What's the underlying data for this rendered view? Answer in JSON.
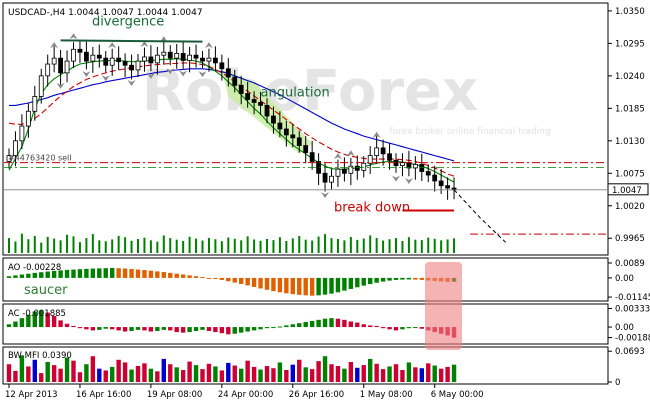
{
  "header": {
    "title": "USDCAD-,H4  1.0044 1.0047 1.0044 1.0047"
  },
  "watermark": "RoboForex",
  "watermark_sub": "forex broker   online financial trading",
  "colors": {
    "up_candle": "#008000",
    "down_candle": "#000000",
    "ma_fast": "#008000",
    "ma_mid": "#cc0000",
    "ma_slow": "#0000cc",
    "ao_up": "#008000",
    "ao_down": "#e06000",
    "ac_up": "#008000",
    "ac_down": "#cc0033",
    "highlight": "#f08080",
    "angulation_zone": "#c8eca0"
  },
  "chart_data": {
    "type": "candlestick",
    "symbol": "USDCAD",
    "timeframe": "H4",
    "main": {
      "ylim": [
        0.994,
        1.036
      ],
      "ticks": [
        "1.0350",
        "1.0295",
        "1.0240",
        "1.0185",
        "1.0130",
        "1.0075",
        "1.0020",
        "0.9965"
      ],
      "tick_values": [
        1.035,
        1.0295,
        1.024,
        1.0185,
        1.013,
        1.0075,
        1.002,
        0.9965
      ],
      "current_price": "1.0047",
      "current_value": 1.0047,
      "order_label": "#44763420 sell",
      "order_value": 1.0093,
      "closes": [
        1.0105,
        1.013,
        1.0155,
        1.018,
        1.0205,
        1.024,
        1.026,
        1.027,
        1.0245,
        1.0265,
        1.0285,
        1.028,
        1.0265,
        1.0275,
        1.027,
        1.0258,
        1.027,
        1.0264,
        1.0258,
        1.025,
        1.0265,
        1.0272,
        1.0262,
        1.0275,
        1.028,
        1.027,
        1.0278,
        1.0266,
        1.0275,
        1.027,
        1.0265,
        1.027,
        1.0262,
        1.0252,
        1.0238,
        1.0224,
        1.021,
        1.02,
        1.0195,
        1.019,
        1.0172,
        1.016,
        1.015,
        1.014,
        1.0135,
        1.0122,
        1.011,
        1.0095,
        1.0075,
        1.006,
        1.007,
        1.0082,
        1.0075,
        1.0087,
        1.008,
        1.0092,
        1.0105,
        1.0118,
        1.0108,
        1.0097,
        1.0088,
        1.0093,
        1.0084,
        1.009,
        1.0078,
        1.0072,
        1.0062,
        1.0054,
        1.005,
        1.0047
      ],
      "ma_fast": [
        1.008,
        1.01,
        1.012,
        1.015,
        1.0185,
        1.021,
        1.0225,
        1.0235,
        1.0242,
        1.0248,
        1.0255,
        1.026,
        1.0262,
        1.0264,
        1.0265,
        1.0266,
        1.0266,
        1.0266,
        1.0265,
        1.0264,
        1.0264,
        1.0265,
        1.0266,
        1.0267,
        1.0268,
        1.0268,
        1.0269,
        1.0268,
        1.0267,
        1.0265,
        1.0262,
        1.0255,
        1.0248,
        1.024,
        1.023,
        1.022,
        1.0208,
        1.0196,
        1.0185,
        1.0175,
        1.0163,
        1.0152,
        1.0142,
        1.0132,
        1.0123,
        1.0115,
        1.0108,
        1.01,
        1.0093,
        1.0087,
        1.0083,
        1.0082,
        1.0082,
        1.0083,
        1.0084,
        1.0086,
        1.0089,
        1.0092,
        1.0094,
        1.0095,
        1.0095,
        1.0094,
        1.0092,
        1.009,
        1.0087,
        1.0083,
        1.0078,
        1.0072,
        1.0066,
        1.006
      ],
      "ma_mid": [
        1.016,
        1.0158,
        1.0158,
        1.0162,
        1.0168,
        1.0176,
        1.0186,
        1.0196,
        1.0206,
        1.0214,
        1.0222,
        1.0228,
        1.0234,
        1.0238,
        1.0242,
        1.0245,
        1.0248,
        1.025,
        1.0252,
        1.0254,
        1.0255,
        1.0257,
        1.0258,
        1.0259,
        1.026,
        1.0261,
        1.0261,
        1.0262,
        1.0262,
        1.0261,
        1.0259,
        1.0256,
        1.0251,
        1.0245,
        1.0238,
        1.023,
        1.0222,
        1.0214,
        1.0206,
        1.0198,
        1.019,
        1.0182,
        1.0174,
        1.0166,
        1.0158,
        1.015,
        1.0142,
        1.0135,
        1.0128,
        1.0122,
        1.0116,
        1.0111,
        1.0107,
        1.0104,
        1.0102,
        1.01,
        1.0099,
        1.0099,
        1.0099,
        1.0099,
        1.0099,
        1.0098,
        1.0097,
        1.0095,
        1.0092,
        1.0088,
        1.0084,
        1.0079,
        1.0074,
        1.007
      ],
      "ma_slow": [
        1.019,
        1.019,
        1.0192,
        1.0194,
        1.0197,
        1.02,
        1.0203,
        1.0207,
        1.021,
        1.0213,
        1.0216,
        1.0219,
        1.0222,
        1.0225,
        1.0227,
        1.023,
        1.0232,
        1.0234,
        1.0236,
        1.0238,
        1.024,
        1.0242,
        1.0244,
        1.0246,
        1.0247,
        1.0249,
        1.025,
        1.0251,
        1.0252,
        1.0252,
        1.0252,
        1.0251,
        1.0249,
        1.0247,
        1.0244,
        1.024,
        1.0236,
        1.0232,
        1.0228,
        1.0223,
        1.0218,
        1.0213,
        1.0208,
        1.0202,
        1.0196,
        1.019,
        1.0184,
        1.0178,
        1.0172,
        1.0166,
        1.016,
        1.0155,
        1.015,
        1.0146,
        1.0142,
        1.0138,
        1.0135,
        1.0132,
        1.0129,
        1.0126,
        1.0123,
        1.012,
        1.0117,
        1.0114,
        1.0111,
        1.0108,
        1.0105,
        1.0102,
        1.0099,
        1.0096
      ],
      "forecast": [
        [
          69,
          1.0047
        ],
        [
          73,
          1.0
        ],
        [
          77,
          0.9958
        ]
      ],
      "annotations": [
        {
          "text": "divergence",
          "index": 11,
          "price": 1.0325,
          "color": "#1a6b3a"
        },
        {
          "text": "angulation",
          "index": 39,
          "price": 1.0205,
          "color": "#1a6b3a"
        },
        {
          "text": "break down",
          "index": 49,
          "price": 1.0017,
          "color": "#cc0000"
        }
      ]
    },
    "ao": {
      "label": "AO -0.00228",
      "ylim": [
        -0.012,
        0.0095
      ],
      "ticks": [
        "0.0089",
        "0.00",
        "-0.01145"
      ],
      "tick_values": [
        0.0089,
        0.0,
        -0.01145
      ],
      "caption": "saucer",
      "values": [
        0.001,
        0.0015,
        0.002,
        0.0025,
        0.003,
        0.0034,
        0.0038,
        0.0042,
        0.0045,
        0.0048,
        0.005,
        0.0052,
        0.0054,
        0.0056,
        0.0057,
        0.0058,
        0.0059,
        0.0058,
        0.0056,
        0.0053,
        0.005,
        0.0047,
        0.0043,
        0.0039,
        0.0035,
        0.003,
        0.0025,
        0.002,
        0.0015,
        0.001,
        0.0005,
        0.0,
        -0.0005,
        -0.0012,
        -0.002,
        -0.0028,
        -0.0036,
        -0.0045,
        -0.0054,
        -0.0063,
        -0.0071,
        -0.0079,
        -0.0086,
        -0.0092,
        -0.0097,
        -0.0101,
        -0.0104,
        -0.0106,
        -0.0104,
        -0.01,
        -0.0094,
        -0.0086,
        -0.0076,
        -0.0066,
        -0.0056,
        -0.0046,
        -0.0037,
        -0.0029,
        -0.0022,
        -0.0016,
        -0.0012,
        -0.001,
        -0.0009,
        -0.001,
        -0.0012,
        -0.0015,
        -0.0018,
        -0.0021,
        -0.0024,
        -0.0023
      ]
    },
    "ac": {
      "label": "AC -0.001885",
      "ylim": [
        -0.0025,
        0.0036
      ],
      "ticks": [
        "0.003334",
        "0.00",
        "-0.001885"
      ],
      "tick_values": [
        0.003334,
        0.0,
        -0.001885
      ],
      "values": [
        0.0005,
        0.001,
        0.0016,
        0.0022,
        0.0028,
        0.003,
        0.0026,
        0.002,
        0.0012,
        0.0006,
        0.0002,
        -0.0002,
        -0.0004,
        -0.0006,
        -0.0005,
        -0.0003,
        -0.0004,
        -0.0006,
        -0.0008,
        -0.0007,
        -0.0005,
        -0.0006,
        -0.0008,
        -0.0007,
        -0.0005,
        -0.0006,
        -0.0009,
        -0.001,
        -0.0009,
        -0.0007,
        -0.0005,
        -0.0007,
        -0.0009,
        -0.0011,
        -0.0013,
        -0.0012,
        -0.001,
        -0.0008,
        -0.0006,
        -0.0004,
        -0.0002,
        -0.0001,
        0.0001,
        0.0003,
        0.0005,
        0.0007,
        0.0009,
        0.0011,
        0.0013,
        0.0015,
        0.0016,
        0.0015,
        0.0013,
        0.001,
        0.0008,
        0.0005,
        0.0003,
        0.0002,
        -0.0002,
        -0.0004,
        -0.0006,
        -0.0004,
        -0.0002,
        -0.0001,
        -0.0003,
        -0.0006,
        -0.0009,
        -0.0012,
        -0.0015,
        -0.0019
      ]
    },
    "bwmfi": {
      "label": "BW MFI 0.0390",
      "ylim": [
        0,
        0.072
      ],
      "ticks": [
        "0.0693",
        "0"
      ],
      "tick_values": [
        0.0693,
        0.0
      ],
      "values": [
        0.04,
        0.025,
        0.06,
        0.035,
        0.05,
        0.02,
        0.045,
        0.038,
        0.03,
        0.055,
        0.048,
        0.022,
        0.04,
        0.058,
        0.03,
        0.026,
        0.034,
        0.05,
        0.044,
        0.028,
        0.036,
        0.042,
        0.03,
        0.024,
        0.052,
        0.04,
        0.033,
        0.027,
        0.046,
        0.038,
        0.029,
        0.041,
        0.035,
        0.026,
        0.043,
        0.037,
        0.03,
        0.048,
        0.034,
        0.028,
        0.036,
        0.031,
        0.044,
        0.027,
        0.039,
        0.05,
        0.033,
        0.029,
        0.047,
        0.058,
        0.04,
        0.036,
        0.03,
        0.045,
        0.032,
        0.038,
        0.052,
        0.041,
        0.029,
        0.035,
        0.04,
        0.027,
        0.044,
        0.033,
        0.031,
        0.042,
        0.037,
        0.03,
        0.034,
        0.039
      ],
      "color_pattern": [
        "#cc0033",
        "#cc0033",
        "#008000",
        "#cc0033",
        "#0000cc",
        "#cc0033",
        "#008000",
        "#cc0033",
        "#cc0033",
        "#008000"
      ]
    },
    "x_axis": {
      "labels": [
        "12 Apr 2013",
        "16 Apr 16:00",
        "19 Apr 08:00",
        "24 Apr 00:00",
        "26 Apr 16:00",
        "1 May 08:00",
        "6 May 00:00"
      ],
      "label_indices": [
        0,
        11,
        22,
        33,
        44,
        55,
        66
      ]
    }
  }
}
